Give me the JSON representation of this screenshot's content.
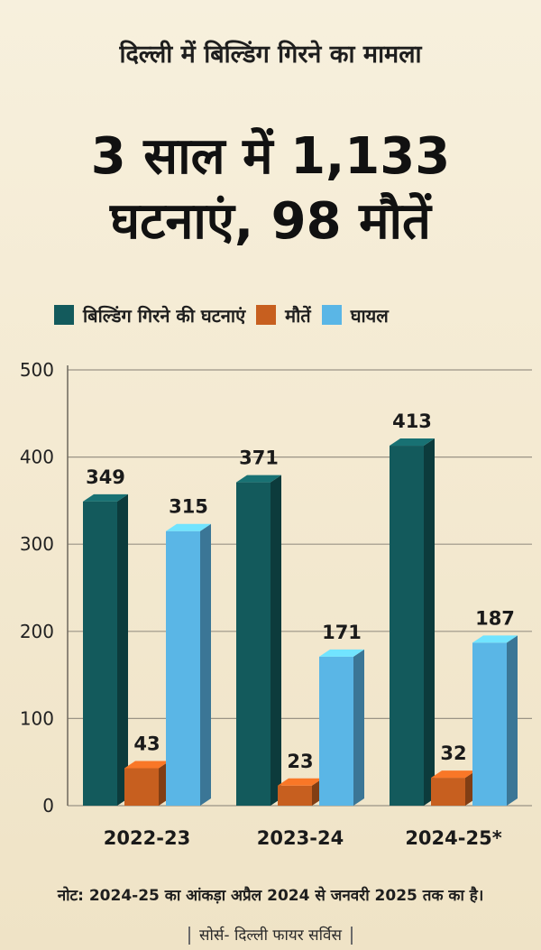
{
  "kicker": "दिल्ली में बिल्डिंग गिरने का मामला",
  "headline": {
    "line1": "3 साल में 1,133",
    "line2": "घटनाएं, 98 मौतें"
  },
  "note": "नोट: 2024-25 का आंकड़ा अप्रैल 2024 से जनवरी 2025 तक का है।",
  "source": "सोर्स- दिल्ली फायर सर्विस",
  "chart_data": {
    "type": "bar",
    "categories": [
      "2022-23",
      "2023-24",
      "2024-25*"
    ],
    "series": [
      {
        "name": "बिल्डिंग गिरने की घटनाएं",
        "values": [
          349,
          371,
          413
        ],
        "color": "#135a5c"
      },
      {
        "name": "मौतें",
        "values": [
          43,
          23,
          32
        ],
        "color": "#c75f1f"
      },
      {
        "name": "घायल",
        "values": [
          315,
          171,
          187
        ],
        "color": "#5ab6e6"
      }
    ],
    "y_ticks": [
      "0",
      "100",
      "200",
      "300",
      "400",
      "500"
    ],
    "ylim": [
      0,
      500
    ],
    "grid": true,
    "legend_position": "top"
  }
}
